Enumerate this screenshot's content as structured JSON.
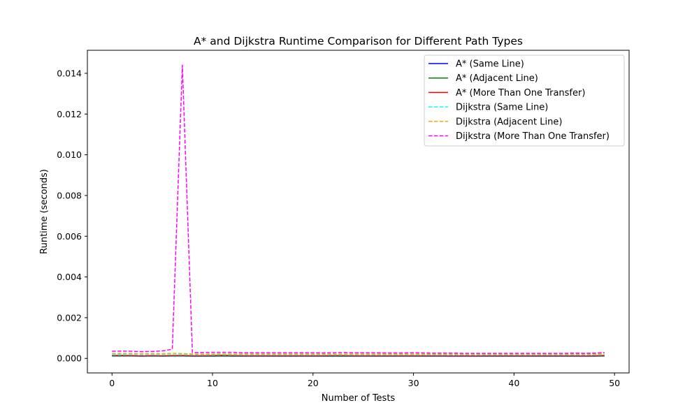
{
  "chart_data": {
    "type": "line",
    "title": "A* and Dijkstra Runtime Comparison for Different Path Types",
    "xlabel": "Number of Tests",
    "ylabel": "Runtime (seconds)",
    "xlim": [
      -2.45,
      51.45
    ],
    "ylim": [
      -0.000712,
      0.01513
    ],
    "xticks": [
      0,
      10,
      20,
      30,
      40,
      50
    ],
    "yticks": [
      0.0,
      0.002,
      0.004,
      0.006,
      0.008,
      0.01,
      0.012,
      0.014
    ],
    "ytick_labels": [
      "0.000",
      "0.002",
      "0.004",
      "0.006",
      "0.008",
      "0.010",
      "0.012",
      "0.014"
    ],
    "grid": false,
    "legend_position": "top-right",
    "series": [
      {
        "name": "A* (Same Line)",
        "color": "#0000ff",
        "dash": "solid",
        "values": [
          0.00012,
          0.00012,
          0.00012,
          0.00011,
          0.00012,
          0.00011,
          0.00012,
          0.00012,
          0.00011,
          0.00011,
          0.00011,
          0.00012,
          0.00011,
          0.00011,
          0.00011,
          0.00011,
          0.00011,
          0.00011,
          0.00011,
          0.00011,
          0.00011,
          0.00011,
          0.00011,
          0.00011,
          0.00011,
          0.00011,
          0.00011,
          0.00011,
          0.00011,
          0.00011,
          0.00011,
          0.00011,
          0.00011,
          0.00011,
          0.00011,
          0.00011,
          0.00011,
          0.00011,
          0.00011,
          0.00011,
          0.00011,
          0.00011,
          0.00011,
          0.00011,
          0.00011,
          0.00011,
          0.00011,
          0.00011,
          0.00011,
          0.00012
        ]
      },
      {
        "name": "A* (Adjacent Line)",
        "color": "#008000",
        "dash": "solid",
        "values": [
          0.00013,
          0.00013,
          0.00013,
          0.00012,
          0.00013,
          0.00012,
          0.00013,
          0.00013,
          0.00012,
          0.00012,
          0.00012,
          0.00013,
          0.00012,
          0.00012,
          0.00012,
          0.00012,
          0.00012,
          0.00012,
          0.00012,
          0.00012,
          0.00012,
          0.00012,
          0.00012,
          0.00012,
          0.00012,
          0.00012,
          0.00012,
          0.00012,
          0.00012,
          0.00012,
          0.00012,
          0.00012,
          0.00012,
          0.00012,
          0.00012,
          0.00012,
          0.00012,
          0.00012,
          0.00012,
          0.00012,
          0.00012,
          0.00012,
          0.00012,
          0.00012,
          0.00012,
          0.00012,
          0.00012,
          0.00012,
          0.00012,
          0.00013
        ]
      },
      {
        "name": "A* (More Than One Transfer)",
        "color": "#ff0000",
        "dash": "solid",
        "values": [
          0.00015,
          0.00015,
          0.00014,
          0.00012,
          0.00014,
          0.00013,
          0.00014,
          0.00015,
          0.00013,
          0.00013,
          0.00014,
          0.00016,
          0.00014,
          0.00013,
          0.00013,
          0.00013,
          0.00013,
          0.00013,
          0.00013,
          0.00013,
          0.00013,
          0.00013,
          0.00014,
          0.00014,
          0.00013,
          0.00013,
          0.00013,
          0.00013,
          0.00013,
          0.00013,
          0.00013,
          0.00013,
          0.00013,
          0.00013,
          0.00012,
          0.00013,
          0.00012,
          0.00013,
          0.00013,
          0.00013,
          0.00013,
          0.00013,
          0.00013,
          0.00013,
          0.00013,
          0.00013,
          0.00013,
          0.00012,
          0.00013,
          0.00015
        ]
      },
      {
        "name": "Dijkstra (Same Line)",
        "color": "#00ffff",
        "dash": "dashed",
        "values": [
          0.00018,
          0.00018,
          0.00018,
          0.00017,
          0.00018,
          0.00017,
          0.00018,
          0.00018,
          0.00017,
          0.00017,
          0.00017,
          0.00018,
          0.00017,
          0.00017,
          0.00017,
          0.00017,
          0.00017,
          0.00017,
          0.00017,
          0.00017,
          0.00017,
          0.00017,
          0.00017,
          0.00017,
          0.00017,
          0.00017,
          0.00017,
          0.00017,
          0.00017,
          0.00017,
          0.00017,
          0.00017,
          0.00017,
          0.00017,
          0.00017,
          0.00017,
          0.00017,
          0.00017,
          0.00017,
          0.00017,
          0.00017,
          0.00017,
          0.00017,
          0.00017,
          0.00017,
          0.00017,
          0.00017,
          0.00017,
          0.00017,
          0.00018
        ]
      },
      {
        "name": "Dijkstra (Adjacent Line)",
        "color": "#ffa500",
        "dash": "dashed",
        "values": [
          0.00024,
          0.00024,
          0.00024,
          0.00023,
          0.00024,
          0.00023,
          0.00025,
          0.00024,
          0.00022,
          0.00022,
          0.00022,
          0.00023,
          0.00022,
          0.00022,
          0.00022,
          0.00022,
          0.00022,
          0.00022,
          0.00022,
          0.00022,
          0.00022,
          0.00022,
          0.00022,
          0.00022,
          0.00022,
          0.00022,
          0.00022,
          0.00022,
          0.00022,
          0.00022,
          0.00022,
          0.00022,
          0.00022,
          0.00022,
          0.00022,
          0.00022,
          0.00022,
          0.00022,
          0.00022,
          0.00022,
          0.00022,
          0.00022,
          0.00022,
          0.00022,
          0.00022,
          0.00022,
          0.00022,
          0.00022,
          0.00022,
          0.00023
        ]
      },
      {
        "name": "Dijkstra (More Than One Transfer)",
        "color": "#ff00ff",
        "dash": "dashed",
        "values": [
          0.00035,
          0.00036,
          0.00035,
          0.00033,
          0.00034,
          0.00037,
          0.00045,
          0.0144,
          0.00029,
          0.00029,
          0.0003,
          0.0003,
          0.0003,
          0.00028,
          0.00028,
          0.00028,
          0.00028,
          0.00028,
          0.00028,
          0.00028,
          0.00028,
          0.00027,
          0.00028,
          0.00029,
          0.00028,
          0.00028,
          0.00028,
          0.00027,
          0.00027,
          0.00027,
          0.00028,
          0.00027,
          0.00026,
          0.00026,
          0.00026,
          0.00025,
          0.00025,
          0.00025,
          0.00025,
          0.00025,
          0.00025,
          0.00025,
          0.00025,
          0.00025,
          0.00025,
          0.00025,
          0.00026,
          0.00025,
          0.00026,
          0.00029
        ]
      }
    ]
  }
}
